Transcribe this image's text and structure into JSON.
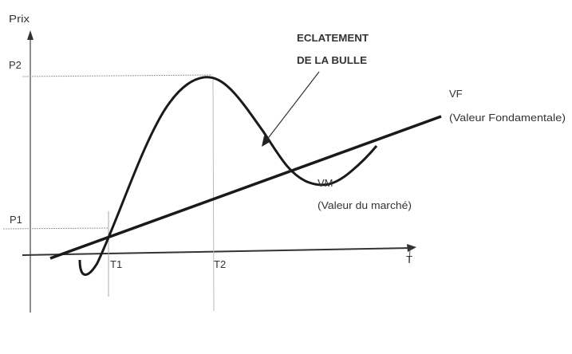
{
  "diagram": {
    "y_axis_label": "Prix",
    "x_axis_label": "T",
    "price_levels": [
      "P2",
      "P1"
    ],
    "time_marks": [
      "T1",
      "T2"
    ],
    "annotation": {
      "line1": "ECLATEMENT",
      "line2": "DE LA BULLE"
    },
    "fundamental_value": {
      "abbr": "VF",
      "label": "(Valeur Fondamentale)"
    },
    "market_value": {
      "abbr": "VM",
      "label": "(Valeur du marché)"
    },
    "colors": {
      "ink": "#1a1a1a",
      "guides": "#888888",
      "background": "#ffffff"
    }
  }
}
